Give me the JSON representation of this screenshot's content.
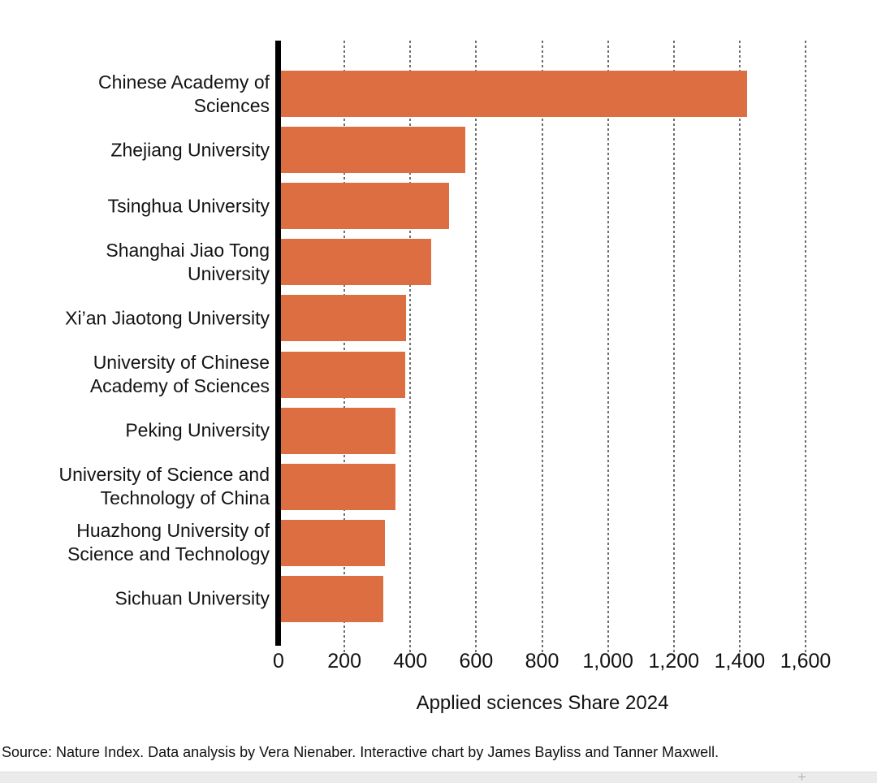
{
  "chart_data": {
    "type": "bar",
    "orientation": "horizontal",
    "xlabel": "Applied sciences Share 2024",
    "categories": [
      "Chinese Academy of Sciences",
      "Zhejiang University",
      "Tsinghua University",
      "Shanghai Jiao Tong University",
      "Xi’an Jiaotong University",
      "University of Chinese Academy of Sciences",
      "Peking University",
      "University of Science and Technology of China",
      "Huazhong University of Science and Technology",
      "Sichuan University"
    ],
    "label_lines": [
      [
        "Chinese Academy of",
        "Sciences"
      ],
      [
        "Zhejiang University"
      ],
      [
        "Tsinghua University"
      ],
      [
        "Shanghai Jiao Tong",
        "University"
      ],
      [
        "Xi’an Jiaotong University"
      ],
      [
        "University of Chinese",
        "Academy of Sciences"
      ],
      [
        "Peking University"
      ],
      [
        "University of Science and",
        "Technology of China"
      ],
      [
        "Huazhong University of",
        "Science and Technology"
      ],
      [
        "Sichuan University"
      ]
    ],
    "values": [
      1422,
      566,
      517,
      463,
      387,
      384,
      356,
      354,
      324,
      319
    ],
    "x_ticks": [
      0,
      200,
      400,
      600,
      800,
      1000,
      1200,
      1400,
      1600
    ],
    "xlim": [
      0,
      1740
    ],
    "grid": "dotted vertical gridlines",
    "legend_position": "none",
    "bar_color": "#DD6E42",
    "axis_color": "#000000",
    "gridline_color": "#6F6F6F",
    "text_color": "#131313"
  },
  "footer": {
    "source_text": "Source: Nature Index. Data analysis by Vera Nienaber. Interactive chart by James Bayliss and Tanner Maxwell."
  }
}
